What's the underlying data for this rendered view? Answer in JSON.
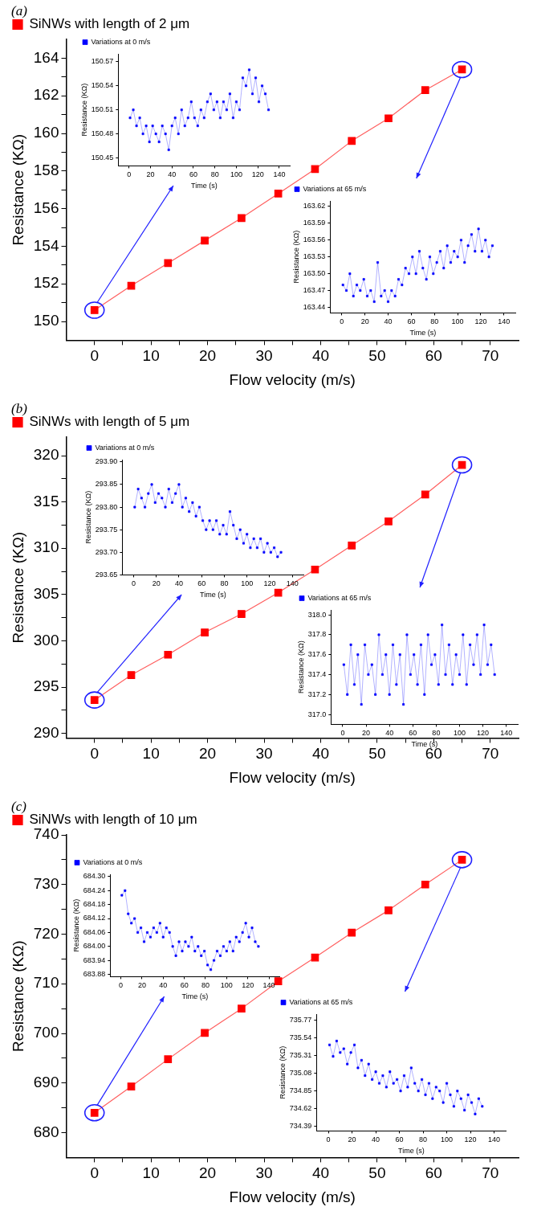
{
  "chart_data": [
    {
      "type": "line",
      "annotations": [
        "(a)"
      ],
      "xlabel": "Flow velocity (m/s)",
      "ylabel": "Resistance (KΩ)",
      "legend": "top left",
      "marker": "square",
      "x": [
        0,
        6.5,
        13,
        19.5,
        26,
        32.5,
        39,
        45.5,
        52,
        58.5,
        65
      ],
      "series": [
        {
          "name": "SiNWs with length of 2 μm",
          "color": "#ff0000",
          "values": [
            150.6,
            151.9,
            153.1,
            154.3,
            155.5,
            156.8,
            158.1,
            159.6,
            160.8,
            162.3,
            163.4
          ]
        }
      ],
      "xlim": [
        -5,
        75
      ],
      "xticks": [
        0,
        {
          "value": 5,
          "label": null
        },
        10,
        {
          "value": 15,
          "label": null
        },
        20,
        {
          "value": 25,
          "label": null
        },
        30,
        {
          "value": 35,
          "label": null
        },
        40,
        {
          "value": 45,
          "label": null
        },
        50,
        {
          "value": 55,
          "label": null
        },
        60,
        {
          "value": 65,
          "label": null
        },
        70
      ],
      "ylim": [
        149,
        165
      ],
      "yticks": [
        150,
        {
          "value": 151,
          "label": null
        },
        152,
        {
          "value": 153,
          "label": null
        },
        154,
        {
          "value": 155,
          "label": null
        },
        156,
        {
          "value": 157,
          "label": null
        },
        158,
        {
          "value": 159,
          "label": null
        },
        160,
        {
          "value": 161,
          "label": null
        },
        162,
        {
          "value": 163,
          "label": null
        },
        164
      ]
    },
    {
      "type": "line",
      "xlabel": "Time (s)",
      "ylabel": "Resistance (KΩ)",
      "legend": "top left",
      "marker": "square",
      "x": [
        1,
        4,
        7,
        10,
        13,
        16,
        19,
        22,
        25,
        28,
        31,
        34,
        37,
        40,
        43,
        46,
        49,
        52,
        55,
        58,
        61,
        64,
        67,
        70,
        73,
        76,
        79,
        82,
        85,
        88,
        91,
        94,
        97,
        100,
        103,
        106,
        109,
        112,
        115,
        118,
        121,
        124,
        127,
        130
      ],
      "series": [
        {
          "name": "Variations at 0 m/s",
          "color": "#0000ff",
          "values": [
            150.5,
            150.51,
            150.49,
            150.5,
            150.48,
            150.49,
            150.47,
            150.49,
            150.48,
            150.47,
            150.49,
            150.48,
            150.46,
            150.49,
            150.5,
            150.48,
            150.51,
            150.49,
            150.5,
            150.52,
            150.5,
            150.49,
            150.51,
            150.5,
            150.52,
            150.53,
            150.51,
            150.52,
            150.5,
            150.52,
            150.51,
            150.53,
            150.5,
            150.52,
            150.51,
            150.55,
            150.54,
            150.56,
            150.53,
            150.55,
            150.52,
            150.54,
            150.53,
            150.51
          ]
        }
      ],
      "xlim": [
        -10,
        150
      ],
      "xticks": [
        0,
        20,
        40,
        60,
        80,
        100,
        120,
        140
      ],
      "ylim": [
        150.44,
        150.58
      ],
      "yticks": [
        150.45,
        150.48,
        150.51,
        150.54,
        150.57
      ]
    },
    {
      "type": "line",
      "xlabel": "Time (s)",
      "ylabel": "Resistance (KΩ)",
      "legend": "top left",
      "marker": "square",
      "x": [
        1,
        4,
        7,
        10,
        13,
        16,
        19,
        22,
        25,
        28,
        31,
        34,
        37,
        40,
        43,
        46,
        49,
        52,
        55,
        58,
        61,
        64,
        67,
        70,
        73,
        76,
        79,
        82,
        85,
        88,
        91,
        94,
        97,
        100,
        103,
        106,
        109,
        112,
        115,
        118,
        121,
        124,
        127,
        130
      ],
      "series": [
        {
          "name": "Variations at 65 m/s",
          "color": "#0000ff",
          "values": [
            163.48,
            163.47,
            163.5,
            163.46,
            163.48,
            163.47,
            163.49,
            163.46,
            163.47,
            163.45,
            163.52,
            163.46,
            163.47,
            163.45,
            163.47,
            163.46,
            163.49,
            163.48,
            163.51,
            163.5,
            163.53,
            163.5,
            163.54,
            163.51,
            163.49,
            163.53,
            163.5,
            163.52,
            163.54,
            163.51,
            163.55,
            163.52,
            163.54,
            163.53,
            163.56,
            163.52,
            163.55,
            163.57,
            163.54,
            163.58,
            163.54,
            163.56,
            163.53,
            163.55
          ]
        }
      ],
      "xlim": [
        -10,
        150
      ],
      "xticks": [
        0,
        20,
        40,
        60,
        80,
        100,
        120,
        140
      ],
      "ylim": [
        163.43,
        163.63
      ],
      "yticks": [
        163.44,
        163.47,
        {
          "value": 163.5,
          "label": "163.50"
        },
        163.53,
        163.56,
        163.59,
        163.62
      ]
    },
    {
      "type": "line",
      "annotations": [
        "(b)"
      ],
      "xlabel": "Flow velocity (m/s)",
      "ylabel": "Resistance (KΩ)",
      "legend": "top left",
      "marker": "square",
      "x": [
        0,
        6.5,
        13,
        19.5,
        26,
        32.5,
        39,
        45.5,
        52,
        58.5,
        65
      ],
      "series": [
        {
          "name": "SiNWs with length of 5 μm",
          "color": "#ff0000",
          "values": [
            293.6,
            296.3,
            298.5,
            300.9,
            302.9,
            305.2,
            307.7,
            310.3,
            312.9,
            315.8,
            319.0
          ]
        }
      ],
      "xlim": [
        -5,
        75
      ],
      "xticks": [
        0,
        {
          "value": 5,
          "label": null
        },
        10,
        {
          "value": 15,
          "label": null
        },
        20,
        {
          "value": 25,
          "label": null
        },
        30,
        {
          "value": 35,
          "label": null
        },
        40,
        {
          "value": 45,
          "label": null
        },
        50,
        {
          "value": 55,
          "label": null
        },
        60,
        {
          "value": 65,
          "label": null
        },
        70
      ],
      "ylim": [
        289.5,
        322
      ],
      "yticks": [
        290,
        {
          "value": 292.5,
          "label": null
        },
        295,
        {
          "value": 297.5,
          "label": null
        },
        300,
        {
          "value": 302.5,
          "label": null
        },
        305,
        {
          "value": 307.5,
          "label": null
        },
        310,
        {
          "value": 312.5,
          "label": null
        },
        315,
        {
          "value": 317.5,
          "label": null
        },
        320
      ]
    },
    {
      "type": "line",
      "xlabel": "Time (s)",
      "ylabel": "Resistance (KΩ)",
      "legend": "top left",
      "marker": "square",
      "x": [
        1,
        4,
        7,
        10,
        13,
        16,
        19,
        22,
        25,
        28,
        31,
        34,
        37,
        40,
        43,
        46,
        49,
        52,
        55,
        58,
        61,
        64,
        67,
        70,
        73,
        76,
        79,
        82,
        85,
        88,
        91,
        94,
        97,
        100,
        103,
        106,
        109,
        112,
        115,
        118,
        121,
        124,
        127,
        130
      ],
      "series": [
        {
          "name": "Variations at 0 m/s",
          "color": "#0000ff",
          "values": [
            293.8,
            293.84,
            293.82,
            293.8,
            293.83,
            293.85,
            293.81,
            293.83,
            293.82,
            293.8,
            293.84,
            293.81,
            293.83,
            293.85,
            293.8,
            293.82,
            293.79,
            293.81,
            293.78,
            293.8,
            293.77,
            293.75,
            293.77,
            293.75,
            293.77,
            293.74,
            293.76,
            293.74,
            293.79,
            293.76,
            293.73,
            293.75,
            293.72,
            293.74,
            293.71,
            293.73,
            293.71,
            293.73,
            293.7,
            293.72,
            293.7,
            293.71,
            293.69,
            293.7
          ]
        }
      ],
      "xlim": [
        -10,
        150
      ],
      "xticks": [
        0,
        20,
        40,
        60,
        80,
        100,
        120,
        140
      ],
      "ylim": [
        293.65,
        293.905
      ],
      "yticks": [
        293.65,
        {
          "value": 293.7,
          "label": "293.70"
        },
        293.75,
        {
          "value": 293.8,
          "label": "293.80"
        },
        293.85,
        {
          "value": 293.9,
          "label": "293.90"
        }
      ]
    },
    {
      "type": "line",
      "xlabel": "Time (s)",
      "ylabel": "Resistance (KΩ)",
      "legend": "top left",
      "marker": "square",
      "x": [
        1,
        4,
        7,
        10,
        13,
        16,
        19,
        22,
        25,
        28,
        31,
        34,
        37,
        40,
        43,
        46,
        49,
        52,
        55,
        58,
        61,
        64,
        67,
        70,
        73,
        76,
        79,
        82,
        85,
        88,
        91,
        94,
        97,
        100,
        103,
        106,
        109,
        112,
        115,
        118,
        121,
        124,
        127,
        130
      ],
      "series": [
        {
          "name": "Variations at 65 m/s",
          "color": "#0000ff",
          "values": [
            317.5,
            317.2,
            317.7,
            317.3,
            317.6,
            317.1,
            317.7,
            317.4,
            317.5,
            317.2,
            317.8,
            317.4,
            317.6,
            317.2,
            317.7,
            317.3,
            317.6,
            317.1,
            317.8,
            317.4,
            317.6,
            317.3,
            317.7,
            317.2,
            317.8,
            317.5,
            317.6,
            317.3,
            317.9,
            317.4,
            317.7,
            317.3,
            317.6,
            317.4,
            317.8,
            317.3,
            317.7,
            317.5,
            317.8,
            317.4,
            317.9,
            317.5,
            317.7,
            317.4
          ]
        }
      ],
      "xlim": [
        -10,
        150
      ],
      "xticks": [
        0,
        20,
        40,
        60,
        80,
        100,
        120,
        140
      ],
      "ylim": [
        316.9,
        318.05
      ],
      "yticks": [
        {
          "value": 317,
          "label": "317.0"
        },
        317.2,
        317.4,
        317.6,
        317.8,
        {
          "value": 318,
          "label": "318.0"
        }
      ]
    },
    {
      "type": "line",
      "annotations": [
        "(c)"
      ],
      "xlabel": "Flow velocity (m/s)",
      "ylabel": "Resistance (KΩ)",
      "legend": "top left",
      "marker": "square",
      "x": [
        0,
        6.5,
        13,
        19.5,
        26,
        32.5,
        39,
        45.5,
        52,
        58.5,
        65
      ],
      "series": [
        {
          "name": "SiNWs with length of 10 μm",
          "color": "#ff0000",
          "values": [
            684.0,
            689.3,
            694.8,
            700.1,
            705.0,
            710.5,
            715.3,
            720.3,
            724.8,
            730.0,
            735.0
          ]
        }
      ],
      "xlim": [
        -5,
        75
      ],
      "xticks": [
        0,
        {
          "value": 5,
          "label": null
        },
        10,
        {
          "value": 15,
          "label": null
        },
        20,
        {
          "value": 25,
          "label": null
        },
        30,
        {
          "value": 35,
          "label": null
        },
        40,
        {
          "value": 45,
          "label": null
        },
        50,
        {
          "value": 55,
          "label": null
        },
        60,
        {
          "value": 65,
          "label": null
        },
        70
      ],
      "ylim": [
        675,
        740
      ],
      "yticks": [
        680,
        {
          "value": 685,
          "label": null
        },
        690,
        {
          "value": 695,
          "label": null
        },
        700,
        {
          "value": 705,
          "label": null
        },
        710,
        {
          "value": 715,
          "label": null
        },
        720,
        {
          "value": 725,
          "label": null
        },
        730,
        {
          "value": 735,
          "label": null
        },
        740
      ]
    },
    {
      "type": "line",
      "xlabel": "Time (s)",
      "ylabel": "Resistance (KΩ)",
      "legend": "top left",
      "marker": "square",
      "x": [
        1,
        4,
        7,
        10,
        13,
        16,
        19,
        22,
        25,
        28,
        31,
        34,
        37,
        40,
        43,
        46,
        49,
        52,
        55,
        58,
        61,
        64,
        67,
        70,
        73,
        76,
        79,
        82,
        85,
        88,
        91,
        94,
        97,
        100,
        103,
        106,
        109,
        112,
        115,
        118,
        121,
        124,
        127,
        130
      ],
      "series": [
        {
          "name": "Variations at 0 m/s",
          "color": "#0000ff",
          "values": [
            684.22,
            684.24,
            684.14,
            684.1,
            684.12,
            684.06,
            684.08,
            684.02,
            684.06,
            684.04,
            684.08,
            684.06,
            684.1,
            684.04,
            684.08,
            684.06,
            684.0,
            683.96,
            684.02,
            683.98,
            684.02,
            684.0,
            684.04,
            683.98,
            684.0,
            683.96,
            683.98,
            683.92,
            683.9,
            683.94,
            683.98,
            683.96,
            684.0,
            683.98,
            684.02,
            683.98,
            684.04,
            684.02,
            684.06,
            684.1,
            684.04,
            684.08,
            684.02,
            684.0
          ]
        }
      ],
      "xlim": [
        -10,
        150
      ],
      "xticks": [
        0,
        20,
        40,
        60,
        80,
        100,
        120,
        140
      ],
      "ylim": [
        683.87,
        684.31
      ],
      "yticks": [
        683.88,
        683.94,
        {
          "value": 684,
          "label": "684.00"
        },
        684.06,
        684.12,
        684.18,
        684.24,
        {
          "value": 684.3,
          "label": "684.30"
        }
      ]
    },
    {
      "type": "line",
      "xlabel": "Time (s)",
      "ylabel": "Resistance (KΩ)",
      "legend": "top left",
      "marker": "square",
      "x": [
        1,
        4,
        7,
        10,
        13,
        16,
        19,
        22,
        25,
        28,
        31,
        34,
        37,
        40,
        43,
        46,
        49,
        52,
        55,
        58,
        61,
        64,
        67,
        70,
        73,
        76,
        79,
        82,
        85,
        88,
        91,
        94,
        97,
        100,
        103,
        106,
        109,
        112,
        115,
        118,
        121,
        124,
        127,
        130
      ],
      "series": [
        {
          "name": "Variations at 65 m/s",
          "color": "#0000ff",
          "values": [
            735.45,
            735.3,
            735.5,
            735.35,
            735.4,
            735.2,
            735.35,
            735.45,
            735.15,
            735.25,
            735.05,
            735.2,
            735.0,
            735.1,
            734.95,
            735.05,
            734.9,
            735.1,
            734.95,
            735.0,
            734.85,
            735.05,
            734.9,
            735.15,
            734.95,
            734.85,
            735.0,
            734.8,
            734.95,
            734.75,
            734.9,
            734.85,
            734.7,
            734.95,
            734.8,
            734.65,
            734.85,
            734.75,
            734.6,
            734.8,
            734.7,
            734.55,
            734.75,
            734.65
          ]
        }
      ],
      "xlim": [
        -10,
        150
      ],
      "xticks": [
        0,
        20,
        40,
        60,
        80,
        100,
        120,
        140
      ],
      "ylim": [
        734.33,
        735.85
      ],
      "yticks": [
        734.39,
        734.62,
        734.85,
        735.08,
        735.31,
        735.54,
        735.77
      ]
    }
  ]
}
